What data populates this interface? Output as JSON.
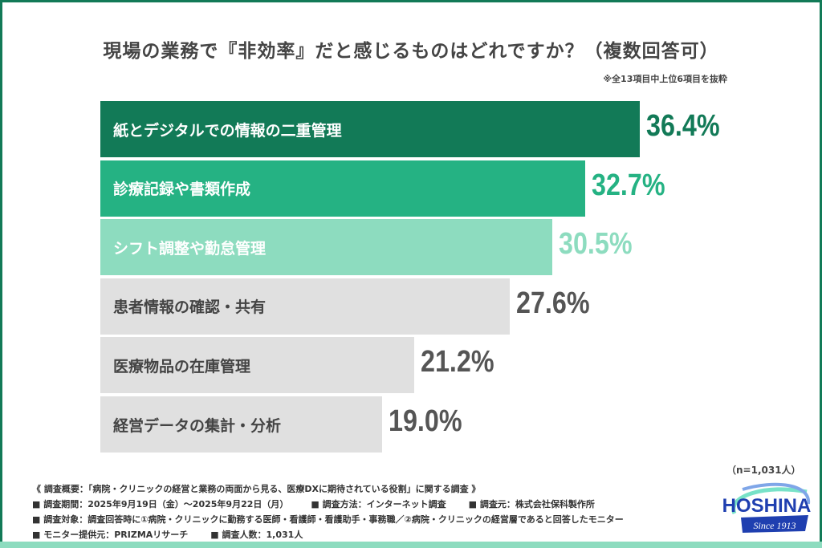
{
  "title": "現場の業務で『非効率』だと感じるものはどれですか？（複数回答可）",
  "note": "※全13項目中上位6項目を抜粋",
  "sample_size": "（n=1,031人）",
  "chart_data": {
    "type": "bar",
    "orientation": "horizontal",
    "title": "現場の業務で『非効率』だと感じるものはどれですか？（複数回答可）",
    "categories": [
      "紙とデジタルでの情報の二重管理",
      "診療記録や書類作成",
      "シフト調整や勤怠管理",
      "患者情報の確認・共有",
      "医療物品の在庫管理",
      "経営データの集計・分析"
    ],
    "values": [
      36.4,
      32.7,
      30.5,
      27.6,
      21.2,
      19.0
    ],
    "labels": [
      "36.4%",
      "32.7%",
      "30.5%",
      "27.6%",
      "21.2%",
      "19.0%"
    ],
    "unit": "%",
    "bar_colors": [
      "#127a57",
      "#25b283",
      "#8ddcbf",
      "#e0e0e0",
      "#e0e0e0",
      "#e0e0e0"
    ],
    "label_text_colors": [
      "#ffffff",
      "#ffffff",
      "#ffffff",
      "#444444",
      "#444444",
      "#444444"
    ],
    "value_colors": [
      "#127a57",
      "#25b283",
      "#8ddcbf",
      "#555555",
      "#555555",
      "#555555"
    ],
    "xlim": [
      0,
      36.4
    ],
    "grid": false
  },
  "footer": {
    "overview": "《 調査概要：「病院・クリニックの経営と業務の両面から見る、医療DXに期待されている役割」に関する調査 》",
    "period": "■ 調査期間：2025年9月19日（金）～2025年9月22日（月）",
    "method": "■ 調査方法：インターネット調査",
    "source": "■ 調査元：株式会社保科製作所",
    "target": "■ 調査対象：調査回答時に①病院・クリニックに勤務する医師・看護師・看護助手・事務職／②病院・クリニックの経営層であると回答したモニター",
    "provider": "■ モニター提供元：PRIZMAリサーチ",
    "count": "■ 調査人数：1,031人"
  },
  "logo": {
    "name": "HOSHINA",
    "since": "Since 1913",
    "colors": {
      "blue": "#1f3fb0",
      "teal": "#3fd6b0"
    }
  }
}
